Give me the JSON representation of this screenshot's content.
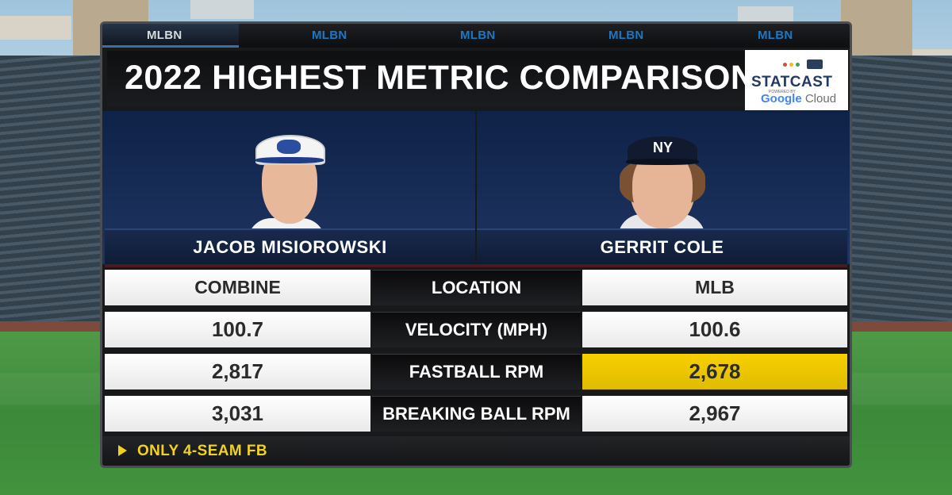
{
  "broadcast": {
    "tabs": [
      "MLBN",
      "MLBN",
      "MLBN",
      "MLBN",
      "MLBN"
    ]
  },
  "header": {
    "title": "2022 HIGHEST METRIC COMPARISON",
    "sponsor": {
      "brand": "STATCAST",
      "powered_by": "POWERED BY",
      "google": "Google",
      "cloud": "Cloud"
    }
  },
  "players": {
    "left": {
      "name": "JACOB MISIOROWSKI",
      "cap_logo": "crown"
    },
    "right": {
      "name": "GERRIT COLE",
      "cap_logo": "NY"
    }
  },
  "table": {
    "header": {
      "left": "COMBINE",
      "center": "LOCATION",
      "right": "MLB"
    },
    "rows": [
      {
        "metric": "VELOCITY (MPH)",
        "combine": "100.7",
        "mlb": "100.6",
        "highlight": ""
      },
      {
        "metric": "FASTBALL RPM",
        "combine": "2,817",
        "mlb": "2,678",
        "highlight": "mlb"
      },
      {
        "metric": "BREAKING BALL RPM",
        "combine": "3,031",
        "mlb": "2,967",
        "highlight": ""
      }
    ]
  },
  "footer": {
    "note": "ONLY 4-SEAM FB"
  },
  "colors": {
    "highlight": "#f2d000",
    "footer_text": "#f2d21d",
    "nameplate": "#14244a",
    "mlbn_blue": "#1d78c4"
  }
}
